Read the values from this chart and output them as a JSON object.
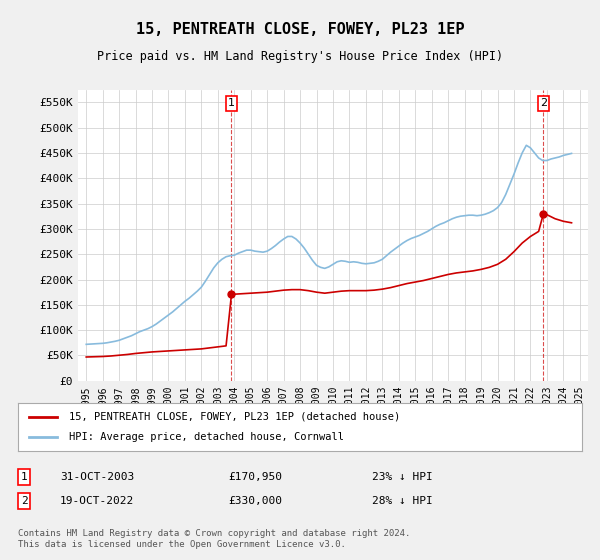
{
  "title": "15, PENTREATH CLOSE, FOWEY, PL23 1EP",
  "subtitle": "Price paid vs. HM Land Registry's House Price Index (HPI)",
  "ylabel": "",
  "xlabel": "",
  "ylim": [
    0,
    575000
  ],
  "yticks": [
    0,
    50000,
    100000,
    150000,
    200000,
    250000,
    300000,
    350000,
    400000,
    450000,
    500000,
    550000
  ],
  "ytick_labels": [
    "£0",
    "£50K",
    "£100K",
    "£150K",
    "£200K",
    "£250K",
    "£300K",
    "£350K",
    "£400K",
    "£450K",
    "£500K",
    "£550K"
  ],
  "xtick_years": [
    1995,
    1996,
    1997,
    1998,
    1999,
    2000,
    2001,
    2002,
    2003,
    2004,
    2005,
    2006,
    2007,
    2008,
    2009,
    2010,
    2011,
    2012,
    2013,
    2014,
    2015,
    2016,
    2017,
    2018,
    2019,
    2020,
    2021,
    2022,
    2023,
    2024,
    2025
  ],
  "background_color": "#f0f0f0",
  "plot_bg_color": "#ffffff",
  "grid_color": "#cccccc",
  "red_color": "#cc0000",
  "blue_color": "#88bbdd",
  "sale1_year": 2003.83,
  "sale1_price": 170950,
  "sale2_year": 2022.79,
  "sale2_price": 330000,
  "legend_label_red": "15, PENTREATH CLOSE, FOWEY, PL23 1EP (detached house)",
  "legend_label_blue": "HPI: Average price, detached house, Cornwall",
  "annotation1_label": "1",
  "annotation1_date": "31-OCT-2003",
  "annotation1_price": "£170,950",
  "annotation1_pct": "23% ↓ HPI",
  "annotation2_label": "2",
  "annotation2_date": "19-OCT-2022",
  "annotation2_price": "£330,000",
  "annotation2_pct": "28% ↓ HPI",
  "footer": "Contains HM Land Registry data © Crown copyright and database right 2024.\nThis data is licensed under the Open Government Licence v3.0.",
  "hpi_years": [
    1995.0,
    1995.25,
    1995.5,
    1995.75,
    1996.0,
    1996.25,
    1996.5,
    1996.75,
    1997.0,
    1997.25,
    1997.5,
    1997.75,
    1998.0,
    1998.25,
    1998.5,
    1998.75,
    1999.0,
    1999.25,
    1999.5,
    1999.75,
    2000.0,
    2000.25,
    2000.5,
    2000.75,
    2001.0,
    2001.25,
    2001.5,
    2001.75,
    2002.0,
    2002.25,
    2002.5,
    2002.75,
    2003.0,
    2003.25,
    2003.5,
    2003.75,
    2004.0,
    2004.25,
    2004.5,
    2004.75,
    2005.0,
    2005.25,
    2005.5,
    2005.75,
    2006.0,
    2006.25,
    2006.5,
    2006.75,
    2007.0,
    2007.25,
    2007.5,
    2007.75,
    2008.0,
    2008.25,
    2008.5,
    2008.75,
    2009.0,
    2009.25,
    2009.5,
    2009.75,
    2010.0,
    2010.25,
    2010.5,
    2010.75,
    2011.0,
    2011.25,
    2011.5,
    2011.75,
    2012.0,
    2012.25,
    2012.5,
    2012.75,
    2013.0,
    2013.25,
    2013.5,
    2013.75,
    2014.0,
    2014.25,
    2014.5,
    2014.75,
    2015.0,
    2015.25,
    2015.5,
    2015.75,
    2016.0,
    2016.25,
    2016.5,
    2016.75,
    2017.0,
    2017.25,
    2017.5,
    2017.75,
    2018.0,
    2018.25,
    2018.5,
    2018.75,
    2019.0,
    2019.25,
    2019.5,
    2019.75,
    2020.0,
    2020.25,
    2020.5,
    2020.75,
    2021.0,
    2021.25,
    2021.5,
    2021.75,
    2022.0,
    2022.25,
    2022.5,
    2022.75,
    2023.0,
    2023.25,
    2023.5,
    2023.75,
    2024.0,
    2024.25,
    2024.5
  ],
  "hpi_values": [
    72000,
    72500,
    73000,
    73500,
    74000,
    75000,
    76500,
    78000,
    80000,
    83000,
    86000,
    89000,
    93000,
    97000,
    100000,
    103000,
    107000,
    112000,
    118000,
    124000,
    130000,
    136000,
    143000,
    150000,
    157000,
    163000,
    170000,
    177000,
    185000,
    197000,
    210000,
    223000,
    233000,
    240000,
    245000,
    247000,
    248000,
    252000,
    255000,
    258000,
    258000,
    256000,
    255000,
    254000,
    256000,
    261000,
    267000,
    274000,
    280000,
    285000,
    285000,
    280000,
    272000,
    262000,
    250000,
    238000,
    228000,
    224000,
    222000,
    225000,
    230000,
    235000,
    237000,
    236000,
    234000,
    235000,
    234000,
    232000,
    231000,
    232000,
    233000,
    236000,
    240000,
    247000,
    254000,
    260000,
    266000,
    272000,
    277000,
    281000,
    284000,
    287000,
    291000,
    295000,
    300000,
    305000,
    309000,
    312000,
    316000,
    320000,
    323000,
    325000,
    326000,
    327000,
    327000,
    326000,
    327000,
    329000,
    332000,
    336000,
    342000,
    352000,
    368000,
    388000,
    408000,
    430000,
    450000,
    465000,
    460000,
    450000,
    440000,
    435000,
    435000,
    438000,
    440000,
    442000,
    445000,
    447000,
    449000
  ],
  "red_years": [
    1995.0,
    1995.5,
    1996.0,
    1996.5,
    1997.0,
    1997.5,
    1998.0,
    1998.5,
    1999.0,
    1999.5,
    2000.0,
    2000.5,
    2001.0,
    2001.5,
    2002.0,
    2002.5,
    2003.0,
    2003.5,
    2003.83,
    2004.0,
    2004.5,
    2005.0,
    2005.5,
    2006.0,
    2006.5,
    2007.0,
    2007.5,
    2008.0,
    2008.5,
    2009.0,
    2009.5,
    2010.0,
    2010.5,
    2011.0,
    2011.5,
    2012.0,
    2012.5,
    2013.0,
    2013.5,
    2014.0,
    2014.5,
    2015.0,
    2015.5,
    2016.0,
    2016.5,
    2017.0,
    2017.5,
    2018.0,
    2018.5,
    2019.0,
    2019.5,
    2020.0,
    2020.5,
    2021.0,
    2021.5,
    2022.0,
    2022.5,
    2022.79,
    2023.0,
    2023.5,
    2024.0,
    2024.5
  ],
  "red_values": [
    47000,
    47500,
    48000,
    49000,
    50500,
    52000,
    54000,
    55500,
    57000,
    58000,
    59000,
    60000,
    61000,
    62000,
    63000,
    65000,
    67000,
    69000,
    170950,
    171000,
    172000,
    173000,
    174000,
    175000,
    177000,
    179000,
    180000,
    180000,
    178000,
    175000,
    173000,
    175000,
    177000,
    178000,
    178000,
    178000,
    179000,
    181000,
    184000,
    188000,
    192000,
    195000,
    198000,
    202000,
    206000,
    210000,
    213000,
    215000,
    217000,
    220000,
    224000,
    230000,
    240000,
    255000,
    272000,
    285000,
    295000,
    330000,
    328000,
    320000,
    315000,
    312000
  ]
}
